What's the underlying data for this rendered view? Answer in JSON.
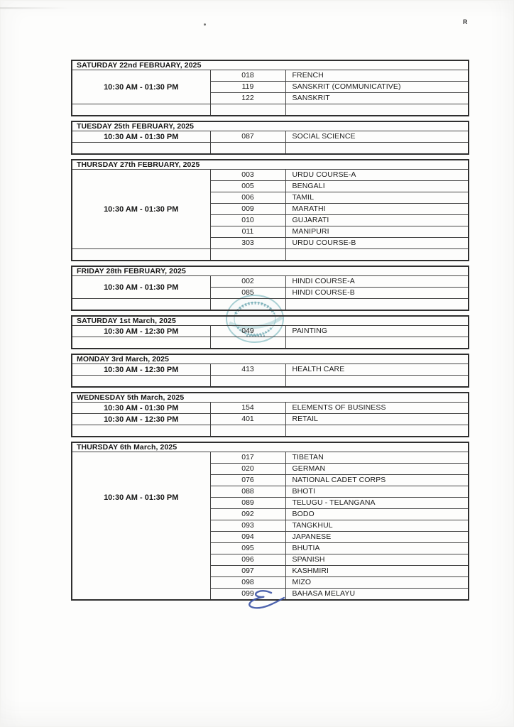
{
  "page": {
    "corner_mark": "R"
  },
  "artifacts": {
    "seal_stamp": {
      "name": "circular-seal-watermark",
      "color": "#4e9aa6"
    },
    "signature": {
      "name": "blue-ink-signature",
      "color": "#3b53a5"
    }
  },
  "timetable": {
    "sections": [
      {
        "date": "SATURDAY 22nd FEBRUARY, 2025",
        "groups": [
          {
            "time": "10:30 AM - 01:30 PM",
            "entries": [
              {
                "code": "018",
                "subject": "FRENCH"
              },
              {
                "code": "119",
                "subject": "SANSKRIT (COMMUNICATIVE)"
              },
              {
                "code": "122",
                "subject": "SANSKRIT"
              }
            ]
          }
        ],
        "empty_row": true,
        "time_position": "middle"
      },
      {
        "date": "TUESDAY 25th FEBRUARY, 2025",
        "groups": [
          {
            "time": "10:30 AM - 01:30 PM",
            "entries": [
              {
                "code": "087",
                "subject": "SOCIAL SCIENCE"
              }
            ]
          }
        ],
        "empty_row": true,
        "time_position": "middle"
      },
      {
        "date": "THURSDAY 27th FEBRUARY, 2025",
        "groups": [
          {
            "time": "10:30 AM - 01:30 PM",
            "entries": [
              {
                "code": "003",
                "subject": "URDU COURSE-A"
              },
              {
                "code": "005",
                "subject": "BENGALI"
              },
              {
                "code": "006",
                "subject": "TAMIL"
              },
              {
                "code": "009",
                "subject": "MARATHI"
              },
              {
                "code": "010",
                "subject": "GUJARATI"
              },
              {
                "code": "011",
                "subject": "MANIPURI"
              },
              {
                "code": "303",
                "subject": "URDU COURSE-B"
              }
            ]
          }
        ],
        "empty_row": true,
        "time_position": "middle"
      },
      {
        "date": "FRIDAY 28th FEBRUARY, 2025",
        "groups": [
          {
            "time": "10:30 AM - 01:30 PM",
            "entries": [
              {
                "code": "002",
                "subject": "HINDI COURSE-A"
              },
              {
                "code": "085",
                "subject": "HINDI COURSE-B"
              }
            ]
          }
        ],
        "empty_row": true,
        "time_position": "middle"
      },
      {
        "date": "SATURDAY 1st March, 2025",
        "groups": [
          {
            "time": "10:30 AM - 12:30 PM",
            "entries": [
              {
                "code": "049",
                "subject": "PAINTING"
              }
            ]
          }
        ],
        "empty_row": true,
        "time_position": "middle"
      },
      {
        "date": "MONDAY 3rd March, 2025",
        "groups": [
          {
            "time": "10:30 AM - 12:30 PM",
            "entries": [
              {
                "code": "413",
                "subject": "HEALTH CARE"
              }
            ]
          }
        ],
        "empty_row": true,
        "time_position": "middle"
      },
      {
        "date": "WEDNESDAY 5th March, 2025",
        "groups": [
          {
            "time": "10:30 AM - 01:30 PM",
            "entries": [
              {
                "code": "154",
                "subject": "ELEMENTS OF BUSINESS"
              }
            ]
          },
          {
            "time": "10:30 AM - 12:30 PM",
            "entries": [
              {
                "code": "401",
                "subject": "RETAIL"
              }
            ]
          }
        ],
        "empty_row": true,
        "time_position": "middle"
      },
      {
        "date": "THURSDAY 6th March, 2025",
        "groups": [
          {
            "time": "10:30 AM - 01:30 PM",
            "entries": [
              {
                "code": "017",
                "subject": "TIBETAN"
              },
              {
                "code": "020",
                "subject": "GERMAN"
              },
              {
                "code": "076",
                "subject": "NATIONAL CADET CORPS"
              },
              {
                "code": "088",
                "subject": "BHOTI"
              },
              {
                "code": "089",
                "subject": "TELUGU - TELANGANA"
              },
              {
                "code": "092",
                "subject": "BODO"
              },
              {
                "code": "093",
                "subject": "TANGKHUL"
              },
              {
                "code": "094",
                "subject": "JAPANESE"
              },
              {
                "code": "095",
                "subject": "BHUTIA"
              },
              {
                "code": "096",
                "subject": "SPANISH"
              },
              {
                "code": "097",
                "subject": "KASHMIRI"
              },
              {
                "code": "098",
                "subject": "MIZO"
              },
              {
                "code": "099",
                "subject": "BAHASA MELAYU"
              }
            ]
          }
        ],
        "empty_row": false,
        "time_position": "upper"
      }
    ]
  }
}
